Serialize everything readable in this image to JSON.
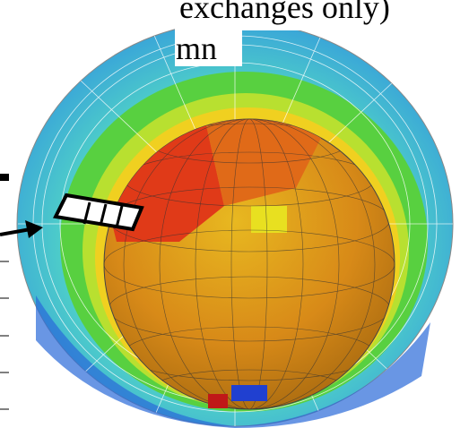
{
  "texts": {
    "line1": "exchanges only)",
    "line2": "mn"
  }
}
